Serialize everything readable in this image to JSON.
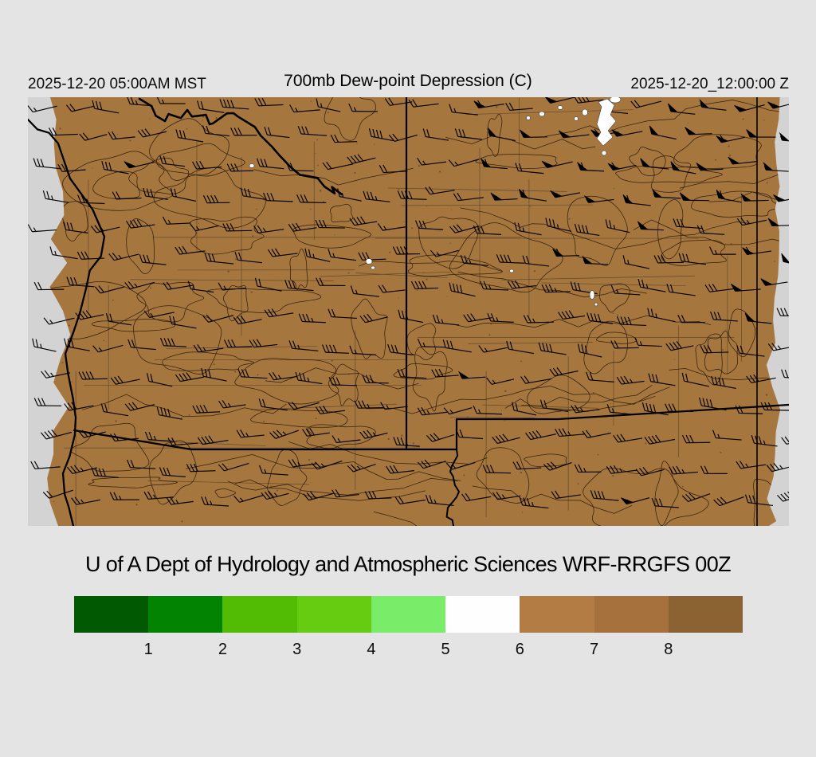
{
  "header": {
    "valid_local": "2025-12-20 05:00AM MST",
    "title": "700mb Dew-point Depression (C)",
    "valid_utc": "2025-12-20_12:00:00 Z"
  },
  "caption": "U of A Dept of Hydrology and Atmospheric Sciences WRF-RRGFS 00Z",
  "colorbar": {
    "tick_labels": [
      "1",
      "2",
      "3",
      "4",
      "5",
      "6",
      "7",
      "8"
    ],
    "segment_colors": [
      "#015a01",
      "#028402",
      "#52bb04",
      "#66cc11",
      "#79ec69",
      "#fefefe",
      "#b27c44",
      "#a6713c",
      "#8b6231"
    ],
    "units": "C"
  },
  "map": {
    "fill_color": "#a6763f",
    "edge_color": "#d3d3d3",
    "background_color": "#e4e4e4",
    "contour_color": "#241503",
    "county_line_color": "#3a2b18",
    "border_color": "#000000",
    "moist_patch_color": "#ffffff",
    "region": "Arizona / New Mexico WRF domain with wind barbs"
  }
}
